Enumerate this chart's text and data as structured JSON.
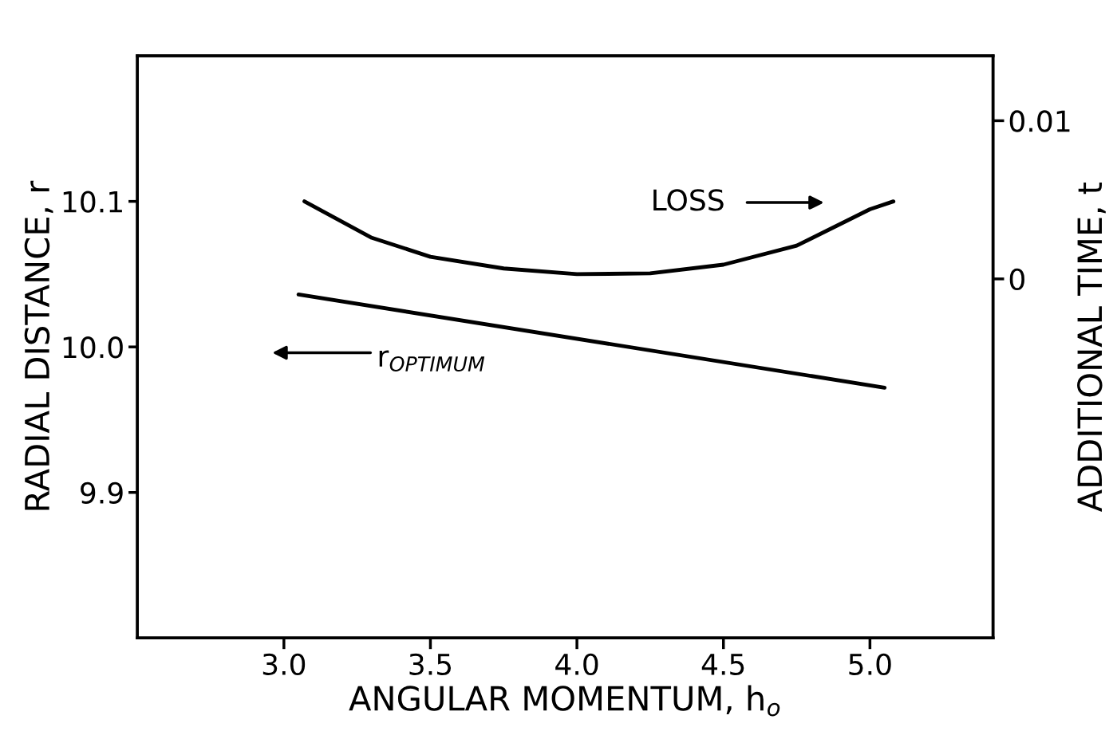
{
  "chart_data": {
    "type": "line",
    "xlabel": "ANGULAR MOMENTUM, h$_{o}$",
    "ylabel": "RADIAL DISTANCE, r",
    "y2label": "ADDITIONAL TIME, t",
    "xlim": [
      2.5,
      5.42
    ],
    "xticks": [
      {
        "value": 3.0,
        "label": "3.0"
      },
      {
        "value": 3.5,
        "label": "3.5"
      },
      {
        "value": 4.0,
        "label": "4.0"
      },
      {
        "value": 4.5,
        "label": "4.5"
      },
      {
        "value": 5.0,
        "label": "5.0"
      }
    ],
    "ylim": [
      9.8,
      10.2
    ],
    "yticks": [
      {
        "value": 9.9,
        "label": "9.9"
      },
      {
        "value": 10.0,
        "label": "10.0"
      },
      {
        "value": 10.1,
        "label": "10.1"
      }
    ],
    "y2lim": [
      -0.0227,
      0.0141
    ],
    "y2ticks": [
      0,
      0.01
    ],
    "grid": false,
    "legend": false,
    "marker": "none",
    "line_style": "solid",
    "series": [
      {
        "color": "#000000",
        "axis": "y2",
        "x": [
          3.07,
          3.3,
          3.5,
          3.75,
          4.0,
          4.25,
          4.5,
          4.75,
          5.0,
          5.08
        ],
        "values": [
          0.0049,
          0.0026,
          0.0014,
          0.00066,
          0.0003,
          0.00035,
          0.0009,
          0.0021,
          0.0044,
          0.0049
        ]
      },
      {
        "color": "#000000",
        "x": [
          3.05,
          5.05
        ],
        "values": [
          10.036,
          9.972
        ]
      }
    ],
    "annotations": [
      "LOSS",
      "r$_{OPTIMUM}$"
    ]
  }
}
